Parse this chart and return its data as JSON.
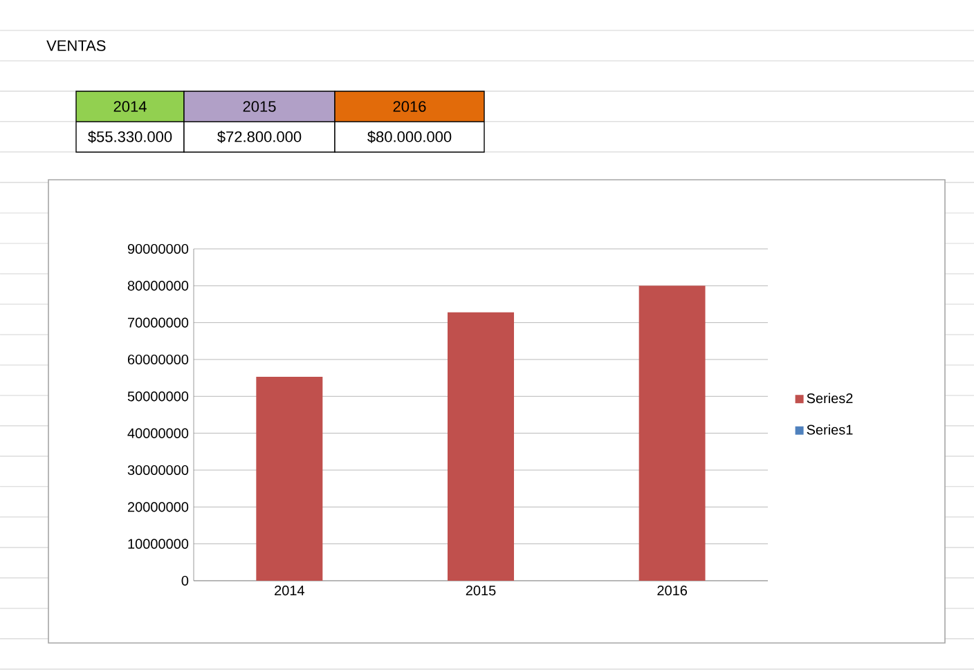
{
  "chart_data": {
    "type": "bar",
    "title": "VENTAS",
    "categories": [
      "2014",
      "2015",
      "2016"
    ],
    "series": [
      {
        "name": "Series1",
        "color": "#4f81bd",
        "values": [
          null,
          null,
          null
        ]
      },
      {
        "name": "Series2",
        "color": "#c0504d",
        "values": [
          55330000,
          72800000,
          80000000
        ]
      }
    ],
    "annotations": [
      "$55.330.000",
      "$72.800.000",
      "$80.000.000"
    ],
    "ylim": [
      0,
      90000000
    ],
    "yticks": [
      0,
      10000000,
      20000000,
      30000000,
      40000000,
      50000000,
      60000000,
      70000000,
      80000000,
      90000000
    ],
    "grid": "y",
    "legend": "right"
  }
}
